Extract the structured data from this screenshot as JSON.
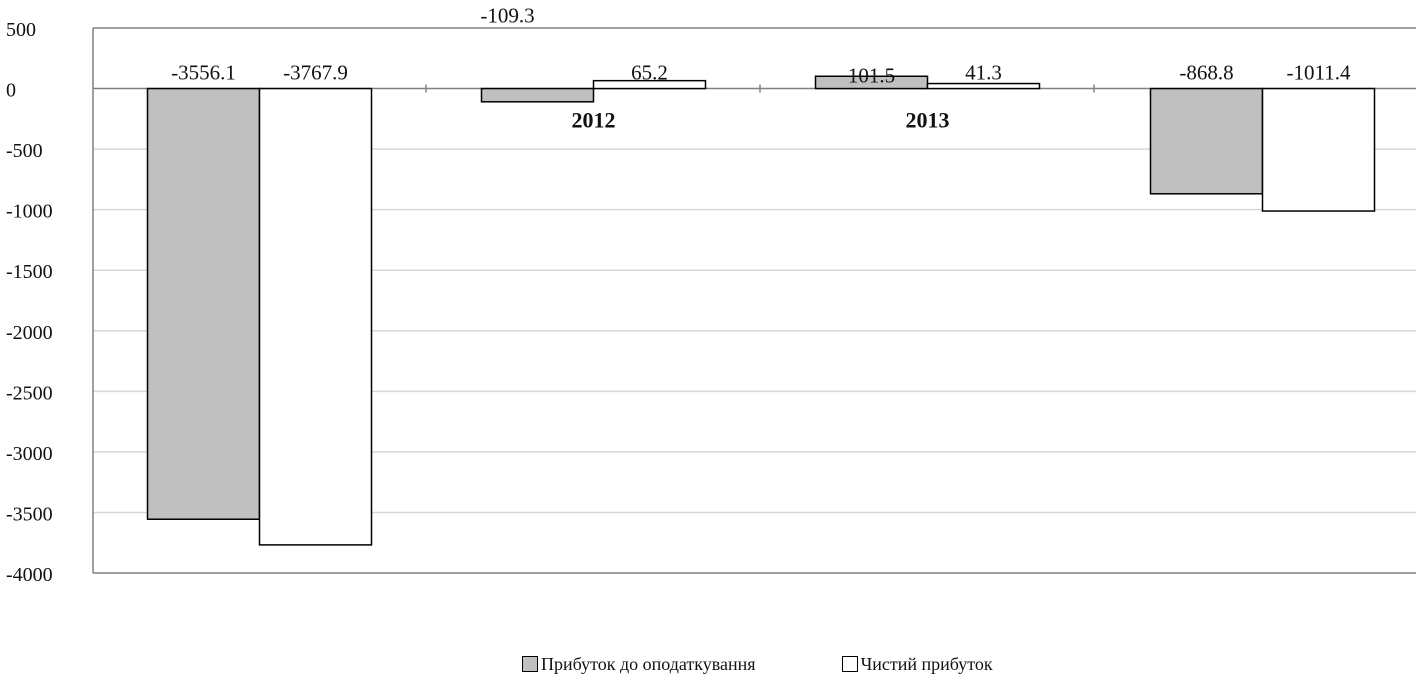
{
  "chart_data": {
    "type": "bar",
    "categories": [
      "",
      "2012",
      "2013",
      ""
    ],
    "series": [
      {
        "name": "Прибуток до оподаткування",
        "values": [
          -3556.1,
          -109.3,
          101.5,
          -868.8
        ],
        "labels": [
          "-3556.1",
          "-109.3",
          "101.5",
          "-868.8"
        ],
        "color": "#c0c0c0"
      },
      {
        "name": "Чистий прибуток",
        "values": [
          -3767.9,
          65.2,
          41.3,
          -1011.4
        ],
        "labels": [
          "-3767.9",
          "65.2",
          "41.3",
          "-1011.4"
        ],
        "color": "#ffffff"
      }
    ],
    "ylim": [
      -4000,
      500
    ],
    "yticks": [
      500,
      0,
      -500,
      -1000,
      -1500,
      -2000,
      -2500,
      -3000,
      -3500,
      -4000
    ],
    "ytick_labels": [
      "500",
      "0",
      "-500",
      "-1000",
      "-1500",
      "-2000",
      "-2500",
      "-3000",
      "-3500",
      "-4000"
    ],
    "grid": true,
    "legend_position": "bottom",
    "xlabel": "",
    "ylabel": "",
    "title": ""
  },
  "colors": {
    "grid": "#d7d7d7",
    "axis": "#808080",
    "bar_stroke": "#000000",
    "text": "#111111"
  }
}
